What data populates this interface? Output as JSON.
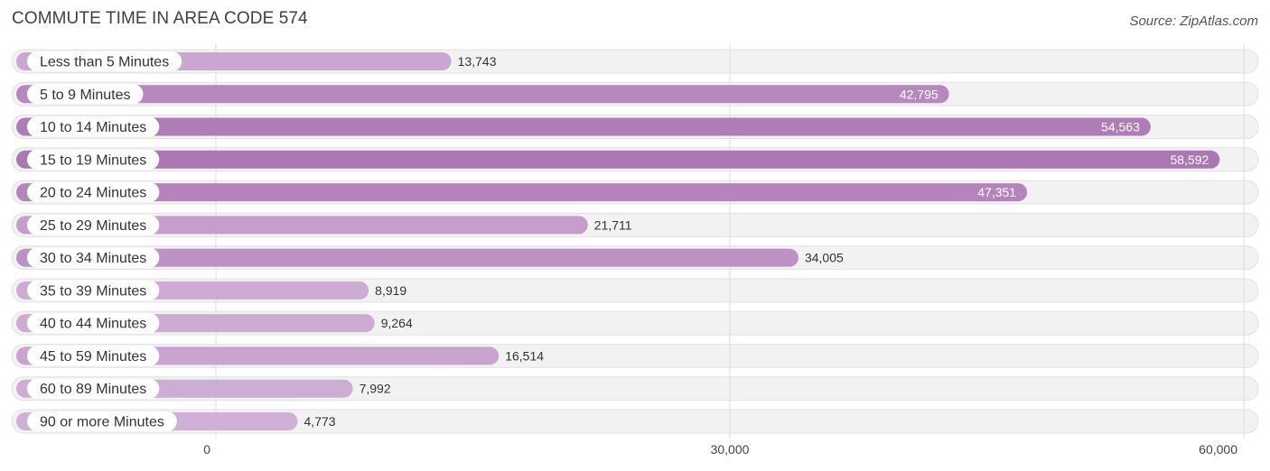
{
  "chart_data": {
    "type": "bar",
    "orientation": "horizontal",
    "title": "COMMUTE TIME IN AREA CODE 574",
    "source": "Source: ZipAtlas.com",
    "categories": [
      "Less than 5 Minutes",
      "5 to 9 Minutes",
      "10 to 14 Minutes",
      "15 to 19 Minutes",
      "20 to 24 Minutes",
      "25 to 29 Minutes",
      "30 to 34 Minutes",
      "35 to 39 Minutes",
      "40 to 44 Minutes",
      "45 to 59 Minutes",
      "60 to 89 Minutes",
      "90 or more Minutes"
    ],
    "values": [
      13743,
      42795,
      54563,
      58592,
      47351,
      21711,
      34005,
      8919,
      9264,
      16514,
      7992,
      4773
    ],
    "value_labels": [
      "13,743",
      "42,795",
      "54,563",
      "58,592",
      "47,351",
      "21,711",
      "34,005",
      "8,919",
      "9,264",
      "16,514",
      "7,992",
      "4,773"
    ],
    "xlim": [
      0,
      60000
    ],
    "xticks": [
      0,
      30000,
      60000
    ],
    "xtick_labels": [
      "0",
      "30,000",
      "60,000"
    ],
    "grid": true,
    "colors": {
      "bar_low": "#d0b0d6",
      "bar_high": "#ac78b4",
      "row_bg": "#f2f2f2"
    }
  }
}
